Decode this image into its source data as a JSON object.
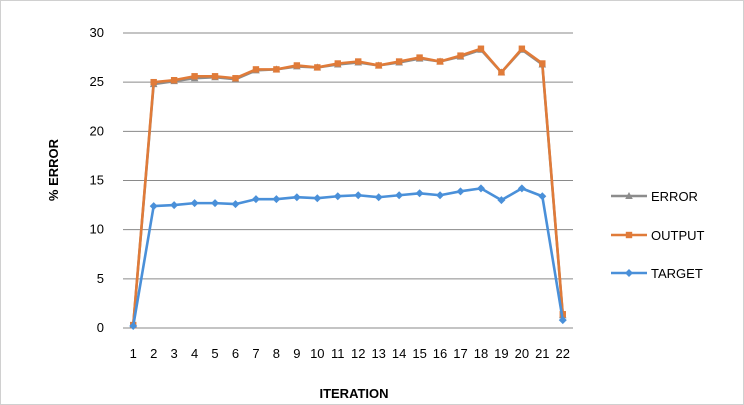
{
  "chart_data": {
    "type": "line",
    "title": "",
    "xlabel": "ITERATION",
    "ylabel": "% ERROR",
    "ylim": [
      0,
      30
    ],
    "yticks": [
      0,
      5,
      10,
      15,
      20,
      25,
      30
    ],
    "grid": true,
    "legend_position": "right",
    "categories": [
      "1",
      "2",
      "3",
      "4",
      "5",
      "6",
      "7",
      "8",
      "9",
      "10",
      "11",
      "12",
      "13",
      "14",
      "15",
      "16",
      "17",
      "18",
      "19",
      "20",
      "21",
      "22"
    ],
    "series": [
      {
        "name": "ERROR",
        "color": "#8c8c8c",
        "marker": "triangle",
        "values": [
          0.3,
          24.8,
          25.1,
          25.4,
          25.5,
          25.3,
          26.2,
          26.3,
          26.6,
          26.5,
          26.8,
          27.0,
          26.7,
          27.0,
          27.4,
          27.1,
          27.6,
          28.3,
          26.0,
          28.3,
          26.8,
          1.3
        ]
      },
      {
        "name": "OUTPUT",
        "color": "#e07b39",
        "marker": "square",
        "values": [
          0.3,
          25.0,
          25.2,
          25.6,
          25.6,
          25.4,
          26.3,
          26.3,
          26.7,
          26.5,
          26.9,
          27.1,
          26.7,
          27.1,
          27.5,
          27.1,
          27.7,
          28.4,
          26.0,
          28.4,
          26.9,
          1.4
        ]
      },
      {
        "name": "TARGET",
        "color": "#4a90d9",
        "marker": "diamond",
        "values": [
          0.2,
          12.4,
          12.5,
          12.7,
          12.7,
          12.6,
          13.1,
          13.1,
          13.3,
          13.2,
          13.4,
          13.5,
          13.3,
          13.5,
          13.7,
          13.5,
          13.9,
          14.2,
          13.0,
          14.2,
          13.4,
          0.8
        ]
      }
    ]
  }
}
